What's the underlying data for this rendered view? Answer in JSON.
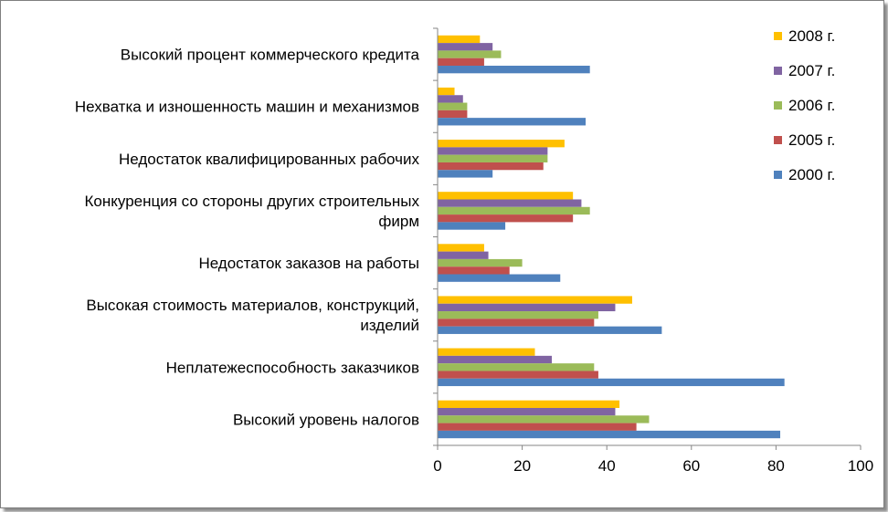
{
  "chart_data": {
    "type": "bar",
    "orientation": "horizontal",
    "categories": [
      [
        "Высокий процент коммерческого кредита"
      ],
      [
        "Нехватка и изношенность машин и механизмов"
      ],
      [
        "Недостаток квалифицированных рабочих"
      ],
      [
        "Конкуренция со стороны других строительных",
        "фирм"
      ],
      [
        "Недостаток заказов на работы"
      ],
      [
        "Высокая стоимость материалов, конструкций,",
        "изделий"
      ],
      [
        "Неплатежеспособность заказчиков"
      ],
      [
        "Высокий уровень налогов"
      ]
    ],
    "series": [
      {
        "name": "2008 г.",
        "color": "#FFC000",
        "values": [
          10,
          4,
          30,
          32,
          11,
          46,
          23,
          43
        ]
      },
      {
        "name": "2007 г.",
        "color": "#8064A2",
        "values": [
          13,
          6,
          26,
          34,
          12,
          42,
          27,
          42
        ]
      },
      {
        "name": "2006 г.",
        "color": "#9BBB59",
        "values": [
          15,
          7,
          26,
          36,
          20,
          38,
          37,
          50
        ]
      },
      {
        "name": "2005 г.",
        "color": "#C0504D",
        "values": [
          11,
          7,
          25,
          32,
          17,
          37,
          38,
          47
        ]
      },
      {
        "name": "2000 г.",
        "color": "#4F81BD",
        "values": [
          36,
          35,
          13,
          16,
          29,
          53,
          82,
          81
        ]
      }
    ],
    "x_ticks": [
      "0",
      "20",
      "40",
      "60",
      "80",
      "100"
    ],
    "xlim": [
      0,
      100
    ],
    "grid": false,
    "legend_position": "right"
  }
}
